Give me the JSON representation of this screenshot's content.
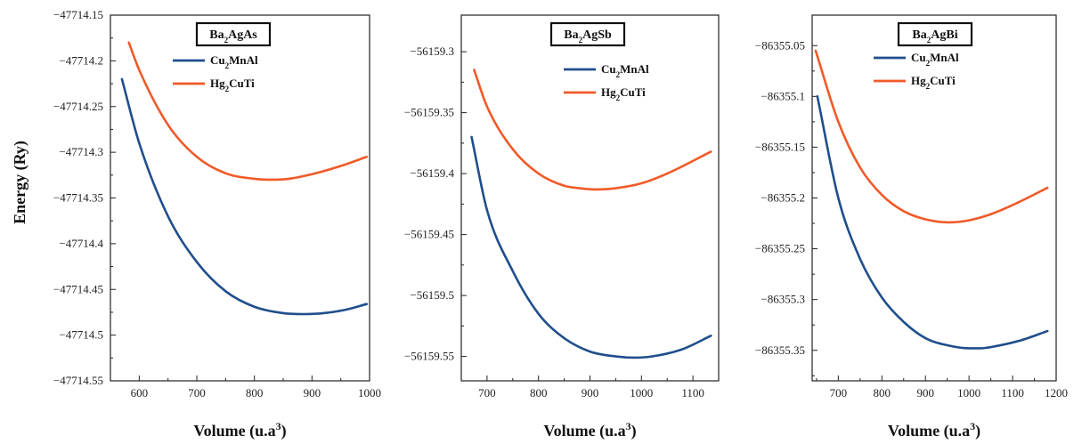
{
  "figure": {
    "ylabel": "Energy (Ry)",
    "xlabel": "Volume (u.a",
    "xlabel_sup": "3",
    "xlabel_close": ")"
  },
  "chart_data": [
    {
      "type": "line",
      "title": {
        "base": "Ba",
        "sub": "2",
        "rest": "AgAs"
      },
      "xlabel": "Volume (u.a³)",
      "ylabel": "Energy (Ry)",
      "xlim": [
        550,
        1000
      ],
      "ylim": [
        -47714.55,
        -47714.15
      ],
      "xticks": [
        600,
        700,
        800,
        900,
        1000
      ],
      "yticks": [
        -47714.15,
        -47714.2,
        -47714.25,
        -47714.3,
        -47714.35,
        -47714.4,
        -47714.45,
        -47714.5,
        -47714.55
      ],
      "ytick_labels": [
        "−47714.15",
        "−47714.2",
        "−47714.25",
        "−47714.3",
        "−47714.35",
        "−47714.4",
        "−47714.45",
        "−47714.5",
        "−47714.55"
      ],
      "legend_position": "top-center",
      "series": [
        {
          "name": "Cu2MnAl",
          "label": {
            "a": "Cu",
            "sub": "2",
            "b": "MnAl"
          },
          "color": "#1f4e8c",
          "x": [
            570,
            600,
            650,
            700,
            750,
            800,
            850,
            885,
            920,
            960,
            995
          ],
          "y": [
            -47714.22,
            -47714.29,
            -47714.37,
            -47714.42,
            -47714.452,
            -47714.469,
            -47714.476,
            -47714.477,
            -47714.476,
            -47714.472,
            -47714.466
          ]
        },
        {
          "name": "Hg2CuTi",
          "label": {
            "a": "Hg",
            "sub": "2",
            "b": "CuTi"
          },
          "color": "#f05a28",
          "x": [
            582,
            600,
            650,
            700,
            750,
            800,
            830,
            860,
            900,
            950,
            995
          ],
          "y": [
            -47714.18,
            -47714.21,
            -47714.27,
            -47714.305,
            -47714.323,
            -47714.329,
            -47714.33,
            -47714.329,
            -47714.324,
            -47714.315,
            -47714.305
          ]
        }
      ]
    },
    {
      "type": "line",
      "title": {
        "base": "Ba",
        "sub": "2",
        "rest": "AgSb"
      },
      "xlabel": "Volume (u.a³)",
      "ylabel": "",
      "xlim": [
        650,
        1150
      ],
      "ylim": [
        -56159.57,
        -56159.27
      ],
      "xticks": [
        700,
        800,
        900,
        1000,
        1100
      ],
      "yticks": [
        -56159.3,
        -56159.35,
        -56159.4,
        -56159.45,
        -56159.5,
        -56159.55
      ],
      "ytick_labels": [
        "−56159.3",
        "−56159.35",
        "−56159.4",
        "−56159.45",
        "−56159.5",
        "−56159.55"
      ],
      "legend_position": "top-right",
      "series": [
        {
          "name": "Cu2MnAl",
          "label": {
            "a": "Cu",
            "sub": "2",
            "b": "MnAl"
          },
          "color": "#1f4e8c",
          "x": [
            670,
            700,
            750,
            800,
            850,
            900,
            950,
            985,
            1020,
            1080,
            1135
          ],
          "y": [
            -56159.37,
            -56159.43,
            -56159.48,
            -56159.515,
            -56159.535,
            -56159.546,
            -56159.55,
            -56159.551,
            -56159.55,
            -56159.544,
            -56159.533
          ]
        },
        {
          "name": "Hg2CuTi",
          "label": {
            "a": "Hg",
            "sub": "2",
            "b": "CuTi"
          },
          "color": "#f05a28",
          "x": [
            675,
            700,
            750,
            800,
            850,
            880,
            910,
            950,
            1000,
            1050,
            1135
          ],
          "y": [
            -56159.315,
            -56159.345,
            -56159.38,
            -56159.4,
            -56159.41,
            -56159.412,
            -56159.413,
            -56159.412,
            -56159.408,
            -56159.4,
            -56159.382
          ]
        }
      ]
    },
    {
      "type": "line",
      "title": {
        "base": "Ba",
        "sub": "2",
        "rest": "AgBi"
      },
      "xlabel": "Volume (u.a³)",
      "ylabel": "",
      "xlim": [
        640,
        1200
      ],
      "ylim": [
        -86355.38,
        -86355.02
      ],
      "xticks": [
        700,
        800,
        900,
        1000,
        1100,
        1200
      ],
      "yticks": [
        -86355.05,
        -86355.1,
        -86355.15,
        -86355.2,
        -86355.25,
        -86355.3,
        -86355.35
      ],
      "ytick_labels": [
        "−86355.05",
        "−86355.1",
        "−86355.15",
        "−86355.2",
        "−86355.25",
        "−86355.3",
        "−86355.35"
      ],
      "legend_position": "top-right",
      "series": [
        {
          "name": "Cu2MnAl",
          "label": {
            "a": "Cu",
            "sub": "2",
            "b": "MnAl"
          },
          "color": "#1f4e8c",
          "x": [
            652,
            700,
            750,
            800,
            850,
            900,
            950,
            1000,
            1025,
            1060,
            1120,
            1180
          ],
          "y": [
            -86355.1,
            -86355.2,
            -86355.26,
            -86355.298,
            -86355.322,
            -86355.338,
            -86355.345,
            -86355.348,
            -86355.348,
            -86355.346,
            -86355.34,
            -86355.331
          ]
        },
        {
          "name": "Hg2CuTi",
          "label": {
            "a": "Hg",
            "sub": "2",
            "b": "CuTi"
          },
          "color": "#f05a28",
          "x": [
            648,
            700,
            750,
            800,
            850,
            900,
            955,
            1000,
            1050,
            1100,
            1180
          ],
          "y": [
            -86355.055,
            -86355.125,
            -86355.17,
            -86355.197,
            -86355.213,
            -86355.221,
            -86355.224,
            -86355.222,
            -86355.216,
            -86355.207,
            -86355.19
          ]
        }
      ]
    }
  ]
}
